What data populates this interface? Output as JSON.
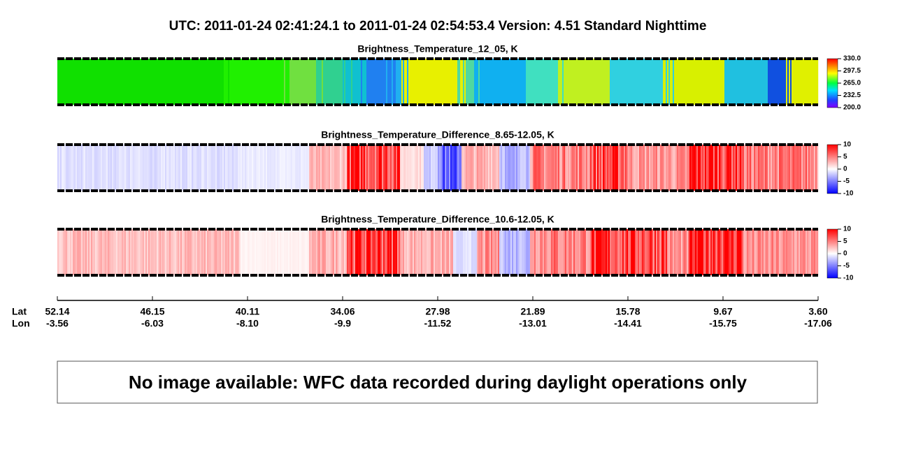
{
  "title": "UTC:  2011-01-24   02:41:24.1  to  2011-01-24   02:54:53.4    Version: 4.51  Standard Nighttime",
  "panels": [
    {
      "title": "Brightness_Temperature_12_05, K",
      "colorbar": "rainbow",
      "lim": [
        200,
        330
      ],
      "ticks": [
        {
          "value": 200,
          "label": "200.0"
        },
        {
          "value": 232.5,
          "label": "232.5"
        },
        {
          "value": 265,
          "label": "265.0"
        },
        {
          "value": 297.5,
          "label": "297.5"
        },
        {
          "value": 330,
          "label": "330.0"
        }
      ]
    },
    {
      "title": "Brightness_Temperature_Difference_8.65-12.05, K",
      "colorbar": "diverging",
      "lim": [
        -10,
        10
      ],
      "ticks": [
        -10,
        -5,
        0,
        5,
        10
      ]
    },
    {
      "title": "Brightness_Temperature_Difference_10.6-12.05, K",
      "colorbar": "diverging",
      "lim": [
        -10,
        10
      ],
      "ticks": [
        -10,
        -5,
        0,
        5,
        10
      ]
    }
  ],
  "axis": {
    "lat_label": "Lat",
    "lon_label": "Lon",
    "lat": [
      52.14,
      46.15,
      40.11,
      34.06,
      27.98,
      21.89,
      15.78,
      9.67,
      {
        "value": 3.6,
        "label": "3.60"
      }
    ],
    "lon": [
      -3.56,
      -6.03,
      {
        "value": -8.1,
        "label": "-8.10"
      },
      -9.9,
      -11.52,
      -13.01,
      -14.41,
      -15.75,
      -17.06
    ]
  },
  "notice": "No image available: WFC data recorded during daylight operations only"
}
